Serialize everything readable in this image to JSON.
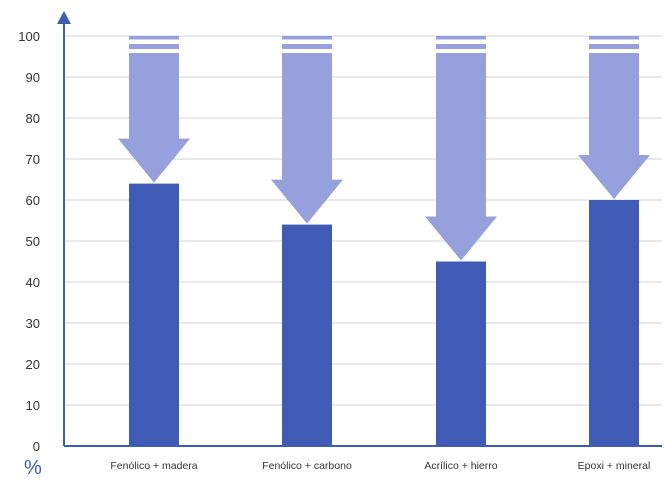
{
  "chart_data": {
    "type": "bar",
    "categories": [
      "Fenólico + madera",
      "Fenólico + carbono",
      "Acrílico + hierro",
      "Epoxi + mineral"
    ],
    "values": [
      64,
      54,
      45,
      60
    ],
    "ylim": [
      0,
      100
    ],
    "yticks": [
      0,
      10,
      20,
      30,
      40,
      50,
      60,
      70,
      80,
      90,
      100
    ],
    "unit": "%",
    "grid": true,
    "bar_color": "#3f5bb5",
    "arrow_color": "#96a0dc",
    "axis_color": "#3d5db5",
    "annotation": "downward arrows from 100 to each bar value"
  }
}
